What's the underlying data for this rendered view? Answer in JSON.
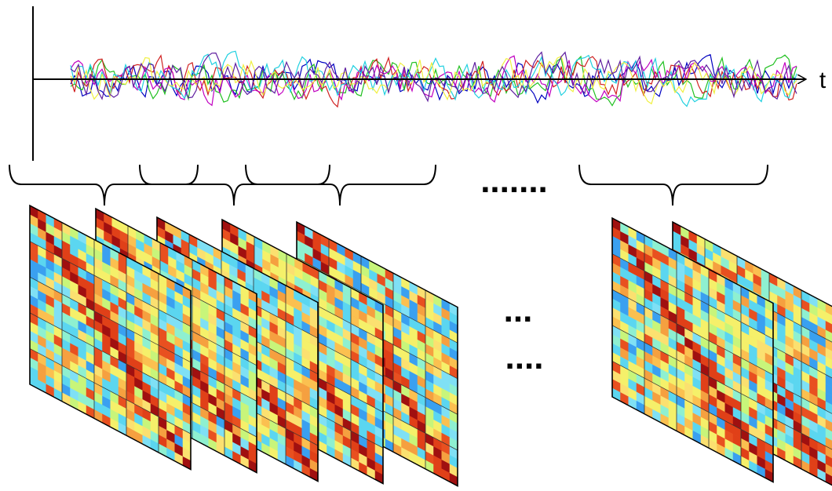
{
  "axis_label": "t",
  "ellipses": [
    ".......",
    "...",
    "...."
  ]
}
